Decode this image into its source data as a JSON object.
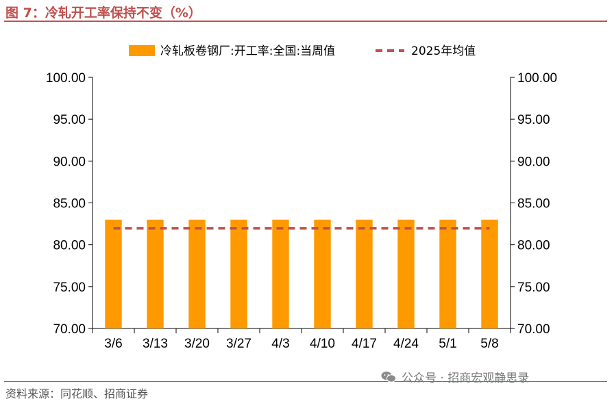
{
  "figure": {
    "title": "图 7：冷轧开工率保持不变（%）",
    "source": "资料来源：同花顺、招商证券",
    "watermark": "公众号 · 招商宏观静思录",
    "watermark_icon": "wechat-icon"
  },
  "chart_data": {
    "type": "bar",
    "categories": [
      "3/6",
      "3/13",
      "3/20",
      "3/27",
      "4/3",
      "4/10",
      "4/17",
      "4/24",
      "5/1",
      "5/8"
    ],
    "series": [
      {
        "name": "冷轧板卷钢厂:开工率:全国:当周值",
        "type": "bar",
        "color": "#ff9900",
        "values": [
          83.0,
          83.0,
          83.0,
          83.0,
          83.0,
          83.0,
          83.0,
          83.0,
          83.0,
          83.0
        ]
      },
      {
        "name": "2025年均值",
        "type": "line",
        "style": "dashed",
        "color": "#c0504d",
        "values": [
          81.95,
          81.95,
          81.95,
          81.95,
          81.95,
          81.95,
          81.95,
          81.95,
          81.95,
          81.95
        ]
      }
    ],
    "ylim": [
      70,
      100
    ],
    "yticks": [
      "70.00",
      "75.00",
      "80.00",
      "85.00",
      "90.00",
      "95.00",
      "100.00"
    ],
    "y2lim": [
      70,
      100
    ],
    "y2ticks": [
      "70.00",
      "75.00",
      "80.00",
      "85.00",
      "90.00",
      "95.00",
      "100.00"
    ],
    "legend_position": "top",
    "grid": false
  }
}
